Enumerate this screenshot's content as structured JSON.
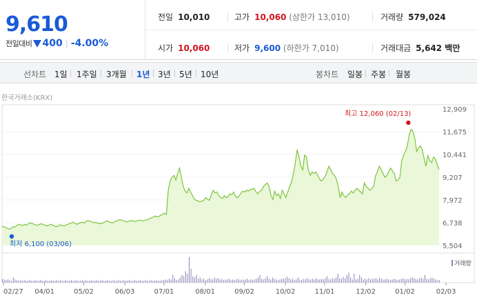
{
  "header": {
    "price": "9,610",
    "change_label": "전일대비",
    "change_value": "400",
    "change_pct": "-4.00%",
    "row1": [
      {
        "k": "전일",
        "v": "10,010"
      },
      {
        "k": "고가",
        "v": "10,060",
        "sub": "(상한가 13,010)"
      },
      {
        "k": "거래량",
        "v": "579,024"
      }
    ],
    "row2": [
      {
        "k": "시가",
        "v": "10,060"
      },
      {
        "k": "저가",
        "v": "9,600",
        "sub": "(하한가 7,010)"
      },
      {
        "k": "거래대금",
        "v": "5,642 백만"
      }
    ]
  },
  "tabs": {
    "line_label": "선차트",
    "line_items": [
      "1일",
      "1주일",
      "3개월",
      "1년",
      "3년",
      "5년",
      "10년"
    ],
    "active": "1년",
    "candle_label": "봉차트",
    "candle_items": [
      "일봉",
      "주봉",
      "월봉"
    ]
  },
  "source": "한국거래소(KRX)",
  "chart_data": {
    "type": "area",
    "y_ticks": [
      "12,909",
      "11,675",
      "10,441",
      "9,207",
      "7,972",
      "6,738",
      "5,504"
    ],
    "ylim": [
      5504,
      12909
    ],
    "x_ticks": [
      "02/27",
      "04/01",
      "05/02",
      "06/03",
      "07/01",
      "08/01",
      "09/02",
      "10/02",
      "11/01",
      "12/02",
      "01/02",
      "02/03"
    ],
    "annotations": {
      "high": "최고 12,060 (02/13)",
      "low": "최저 6,100 (03/06)"
    },
    "volume_legend": "거래량",
    "series": [
      {
        "values": [
          6560,
          6500,
          6480,
          6420,
          6380,
          6450,
          6520,
          6500,
          6600,
          6650,
          6620,
          6580,
          6640,
          6600,
          6680,
          6720,
          6700,
          6650,
          6620,
          6600,
          6640,
          6680,
          6640,
          6600,
          6560,
          6600,
          6640,
          6620,
          6560,
          6520,
          6560,
          6620,
          6600,
          6560,
          6600,
          6640,
          6680,
          6720,
          6760,
          6700,
          6650,
          6700,
          6740,
          6760,
          6720,
          6800,
          6850,
          6820,
          6780,
          6740,
          6760,
          6720,
          6700,
          6680,
          6720,
          6780,
          6840,
          6800,
          6760,
          6720,
          6780,
          6820,
          6860,
          6900,
          6880,
          6840,
          6800,
          6780,
          6820,
          6860,
          6830,
          6800,
          6820,
          6860,
          6880,
          6840,
          6850,
          6880,
          6900,
          6950,
          7000,
          7050,
          7100,
          7050,
          7080,
          7150,
          7200,
          7250,
          7200,
          8500,
          9000,
          9200,
          9300,
          9050,
          9400,
          9700,
          9200,
          8700,
          8450,
          8350,
          8600,
          8400,
          8200,
          8000,
          7950,
          7900,
          7880,
          7900,
          7950,
          8100,
          8000,
          7950,
          8250,
          8500,
          8350,
          8400,
          8200,
          8100,
          8050,
          8200,
          8100,
          8150,
          8300,
          8250,
          8400,
          8150,
          8100,
          8200,
          8350,
          8450,
          8400,
          8500,
          8450,
          8550,
          8550,
          8600,
          8400,
          8300,
          8450,
          8500,
          8700,
          8800,
          8900,
          8700,
          8200,
          8000,
          8450,
          8200,
          8300,
          8050,
          8500,
          8300,
          8100,
          8400,
          8700,
          8950,
          9400,
          10000,
          10700,
          10300,
          9800,
          9600,
          10400,
          10300,
          9600,
          9300,
          9500,
          9400,
          9500,
          9300,
          9100,
          9000,
          9100,
          9250,
          9500,
          9800,
          9600,
          9400,
          9300,
          9100,
          8700,
          8100,
          8400,
          8200,
          8100,
          8250,
          8300,
          8450,
          8350,
          8500,
          8600,
          8500,
          8400,
          8300,
          8900,
          8700,
          8600,
          8500,
          8600,
          8700,
          9300,
          9500,
          9800,
          9600,
          9400,
          9200,
          9300,
          9500,
          9700,
          9550,
          9400,
          9000,
          9050,
          9200,
          10100,
          10400,
          10600,
          10900,
          11500,
          11800,
          11700,
          11300,
          10600,
          10800,
          10900,
          10700,
          10200,
          9800,
          10400,
          10100,
          10000,
          10300,
          10200,
          9900,
          9610
        ]
      }
    ],
    "volume": [
      6,
      5,
      4,
      5,
      4,
      3,
      8,
      5,
      4,
      3,
      4,
      3,
      4,
      3,
      3,
      4,
      3,
      3,
      4,
      3,
      3,
      4,
      3,
      3,
      4,
      3,
      3,
      4,
      3,
      3,
      4,
      3,
      4,
      3,
      3,
      4,
      3,
      3,
      4,
      3,
      3,
      4,
      3,
      3,
      4,
      3,
      4,
      3,
      3,
      4,
      3,
      3,
      4,
      3,
      3,
      4,
      3,
      3,
      4,
      3,
      3,
      4,
      3,
      3,
      4,
      3,
      3,
      4,
      3,
      3,
      4,
      3,
      3,
      4,
      3,
      3,
      4,
      3,
      3,
      4,
      3,
      3,
      4,
      3,
      3,
      4,
      3,
      3,
      4,
      4,
      5,
      4,
      6,
      5,
      12,
      7,
      4,
      5,
      8,
      12,
      10,
      18,
      14,
      40,
      22,
      10,
      8,
      12,
      6,
      8,
      5,
      6,
      4,
      5,
      7,
      6,
      5,
      8,
      6,
      7,
      5,
      6,
      4,
      5,
      5,
      6,
      4,
      5,
      4,
      5,
      6,
      4,
      5,
      4,
      5,
      6,
      4,
      5,
      4,
      5,
      6,
      8,
      12,
      6,
      5,
      7,
      10,
      6,
      5,
      8,
      6,
      5,
      4,
      5,
      6,
      6,
      7,
      9,
      7,
      5,
      6,
      4,
      5,
      8,
      5,
      4,
      6,
      5,
      7,
      5,
      5,
      6,
      5,
      7,
      5,
      5,
      6,
      5,
      7,
      10,
      6,
      5,
      7,
      6,
      8,
      14,
      7,
      6,
      9,
      7,
      12,
      16,
      8,
      5,
      14,
      5,
      6,
      12,
      8,
      5,
      6,
      5,
      7,
      5,
      6,
      6,
      7,
      5,
      8,
      6,
      5,
      5,
      6,
      5,
      4,
      5,
      6,
      5,
      4,
      5,
      6,
      7,
      5,
      6,
      5,
      7,
      8,
      7,
      6,
      5,
      7,
      8,
      6,
      12,
      6,
      5,
      7,
      8,
      6,
      5,
      4,
      4
    ]
  },
  "colors": {
    "price_blue": "#1a5ad7",
    "red": "#d1141c",
    "line": "#7cc43c",
    "fill": "#eaf7d8",
    "volume": "#8a7fb5"
  }
}
